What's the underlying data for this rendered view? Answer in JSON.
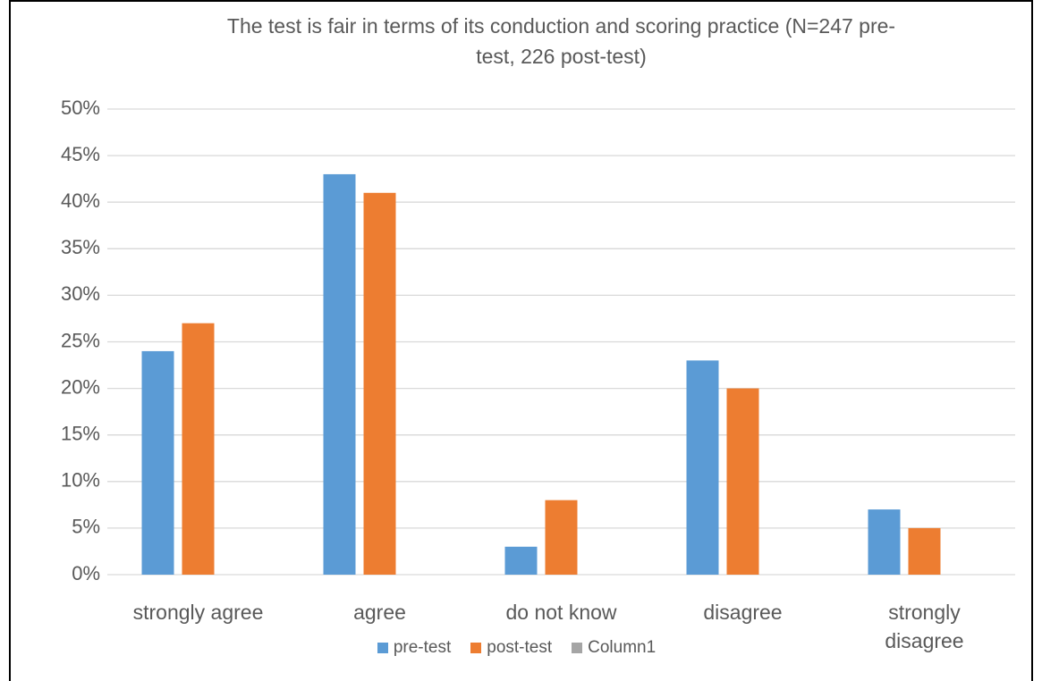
{
  "chart_data": {
    "type": "bar",
    "title": "The test is fair in terms of its conduction and scoring practice (N=247 pre-test, 226 post-test)",
    "categories": [
      "strongly agree",
      "agree",
      "do not know",
      "disagree",
      "strongly disagree"
    ],
    "series": [
      {
        "name": "pre-test",
        "color": "#5b9bd5",
        "values": [
          24,
          43,
          3,
          23,
          7
        ]
      },
      {
        "name": "post-test",
        "color": "#ed7d31",
        "values": [
          27,
          41,
          8,
          20,
          5
        ]
      },
      {
        "name": "Column1",
        "color": "#a5a5a5",
        "values": [
          null,
          null,
          null,
          null,
          null
        ]
      }
    ],
    "ylim": [
      0,
      50
    ],
    "yticks": [
      {
        "value": 0,
        "label": "0%"
      },
      {
        "value": 5,
        "label": "5%"
      },
      {
        "value": 10,
        "label": "10%"
      },
      {
        "value": 15,
        "label": "15%"
      },
      {
        "value": 20,
        "label": "20%"
      },
      {
        "value": 25,
        "label": "25%"
      },
      {
        "value": 30,
        "label": "30%"
      },
      {
        "value": 35,
        "label": "35%"
      },
      {
        "value": 40,
        "label": "40%"
      },
      {
        "value": 45,
        "label": "45%"
      },
      {
        "value": 50,
        "label": "50%"
      }
    ],
    "grid": true,
    "legend": "bottom"
  }
}
